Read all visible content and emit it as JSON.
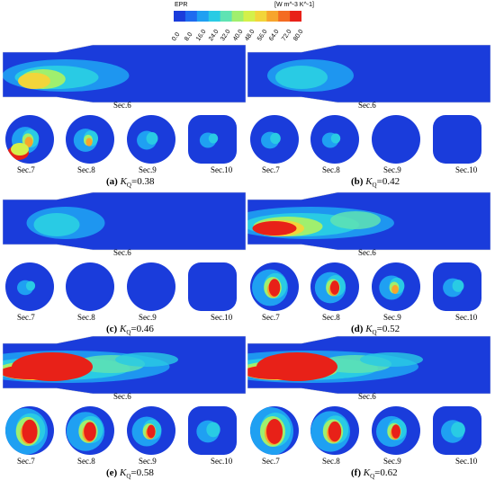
{
  "legend": {
    "title": "EPR",
    "units": "[W m^-3 K^-1]",
    "ticks": [
      "0.0",
      "8.0",
      "16.0",
      "24.0",
      "32.0",
      "40.0",
      "48.0",
      "56.0",
      "64.0",
      "72.0",
      "80.0"
    ],
    "colors": [
      "#1a3cdb",
      "#1e6bf0",
      "#1fa0f2",
      "#29cbe4",
      "#5fe3b3",
      "#a0ef6e",
      "#d4f04a",
      "#f2d53a",
      "#f7a52d",
      "#f46b22",
      "#e82118"
    ]
  },
  "panels": [
    {
      "letter": "(a)",
      "kq": "=0.38",
      "sec6": "Sec.6",
      "sec7": "Sec.7",
      "sec8": "Sec.8",
      "sec9": "Sec.9",
      "sec10": "Sec.10"
    },
    {
      "letter": "(b)",
      "kq": "=0.42",
      "sec6": "Sec.6",
      "sec7": "Sec.7",
      "sec8": "Sec.8",
      "sec9": "Sec.9",
      "sec10": "Sec.10"
    },
    {
      "letter": "(c)",
      "kq": "=0.46",
      "sec6": "Sec.6",
      "sec7": "Sec.7",
      "sec8": "Sec.8",
      "sec9": "Sec.9",
      "sec10": "Sec.10"
    },
    {
      "letter": "(d)",
      "kq": "=0.52",
      "sec6": "Sec.6",
      "sec7": "Sec.7",
      "sec8": "Sec.8",
      "sec9": "Sec.9",
      "sec10": "Sec.10"
    },
    {
      "letter": "(e)",
      "kq": "=0.58",
      "sec6": "Sec.6",
      "sec7": "Sec.7",
      "sec8": "Sec.8",
      "sec9": "Sec.9",
      "sec10": "Sec.10"
    },
    {
      "letter": "(f)",
      "kq": "=0.62",
      "sec6": "Sec.6",
      "sec7": "Sec.7",
      "sec8": "Sec.8",
      "sec9": "Sec.9",
      "sec10": "Sec.10"
    }
  ],
  "kq_symbol": "K",
  "kq_sub": "Q"
}
